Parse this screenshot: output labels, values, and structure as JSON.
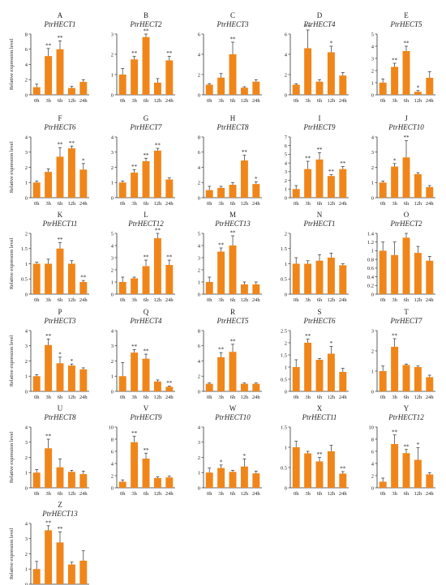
{
  "figure": {
    "colors": {
      "bar": "#F0861A",
      "axis": "#333333",
      "text": "#222222"
    }
  },
  "chart_data": [
    {
      "type": "bar",
      "letter": "A",
      "title": "PtrHECT1",
      "ylabel": "Relative expression level",
      "ylim": [
        0,
        8
      ],
      "yticks": [
        0,
        2,
        4,
        6,
        8
      ],
      "categories": [
        "0h",
        "3h",
        "6h",
        "12h",
        "24h"
      ],
      "values": [
        1.0,
        5.1,
        6.0,
        0.9,
        1.7
      ],
      "errors": [
        0.4,
        1.0,
        1.1,
        0.2,
        0.3
      ],
      "sig": [
        "",
        "**",
        "**",
        "",
        ""
      ]
    },
    {
      "type": "bar",
      "letter": "B",
      "title": "PtrHECT2",
      "ylabel": "",
      "ylim": [
        0,
        3
      ],
      "yticks": [
        0,
        1,
        2,
        3
      ],
      "categories": [
        "0h",
        "3h",
        "6h",
        "12h",
        "24h"
      ],
      "values": [
        1.0,
        1.75,
        2.85,
        0.6,
        1.7
      ],
      "errors": [
        0.3,
        0.15,
        0.15,
        0.2,
        0.2
      ],
      "sig": [
        "",
        "**",
        "**",
        "",
        "**"
      ]
    },
    {
      "type": "bar",
      "letter": "C",
      "title": "PtrHECT3",
      "ylabel": "",
      "ylim": [
        0,
        6
      ],
      "yticks": [
        0,
        2,
        4,
        6
      ],
      "categories": [
        "0h",
        "3h",
        "6h",
        "12h",
        "24h"
      ],
      "values": [
        1.0,
        1.7,
        4.0,
        0.7,
        1.3
      ],
      "errors": [
        0.1,
        0.4,
        1.2,
        0.1,
        0.2
      ],
      "sig": [
        "",
        "",
        "**",
        "",
        ""
      ]
    },
    {
      "type": "bar",
      "letter": "D",
      "title": "PtrHECT4",
      "ylabel": "",
      "ylim": [
        0,
        6
      ],
      "yticks": [
        0,
        2,
        4,
        6
      ],
      "categories": [
        "0h",
        "3h",
        "6h",
        "12h",
        "24h"
      ],
      "values": [
        1.0,
        4.6,
        1.3,
        4.2,
        1.9
      ],
      "errors": [
        0.1,
        1.8,
        0.2,
        0.6,
        0.3
      ],
      "sig": [
        "",
        "**",
        "",
        "*",
        ""
      ]
    },
    {
      "type": "bar",
      "letter": "E",
      "title": "PtrHECT5",
      "ylabel": "",
      "ylim": [
        0,
        5
      ],
      "yticks": [
        0,
        1,
        2,
        3,
        4,
        5
      ],
      "categories": [
        "0h",
        "3h",
        "6h",
        "12h",
        "24h"
      ],
      "values": [
        1.0,
        2.3,
        3.6,
        0.25,
        1.4
      ],
      "errors": [
        0.3,
        0.3,
        0.4,
        0.1,
        0.5
      ],
      "sig": [
        "",
        "**",
        "**",
        "*",
        ""
      ]
    },
    {
      "type": "bar",
      "letter": "F",
      "title": "PtrHECT6",
      "ylabel": "Relative expression level",
      "ylim": [
        0,
        4
      ],
      "yticks": [
        0,
        1,
        2,
        3,
        4
      ],
      "categories": [
        "0h",
        "3h",
        "6h",
        "12h",
        "24h"
      ],
      "values": [
        1.0,
        1.7,
        2.7,
        3.25,
        1.85
      ],
      "errors": [
        0.1,
        0.2,
        0.6,
        0.15,
        0.4
      ],
      "sig": [
        "",
        "",
        "**",
        "**",
        "*"
      ]
    },
    {
      "type": "bar",
      "letter": "G",
      "title": "PtrHECT7",
      "ylabel": "",
      "ylim": [
        0,
        4
      ],
      "yticks": [
        0,
        1,
        2,
        3,
        4
      ],
      "categories": [
        "0h",
        "3h",
        "6h",
        "12h",
        "24h"
      ],
      "values": [
        1.0,
        1.65,
        2.4,
        3.1,
        1.2
      ],
      "errors": [
        0.1,
        0.2,
        0.2,
        0.15,
        0.1
      ],
      "sig": [
        "",
        "**",
        "**",
        "**",
        ""
      ]
    },
    {
      "type": "bar",
      "letter": "H",
      "title": "PtrHECT8",
      "ylabel": "",
      "ylim": [
        0,
        8
      ],
      "yticks": [
        0,
        2,
        4,
        6,
        8
      ],
      "categories": [
        "0h",
        "3h",
        "6h",
        "12h",
        "24h"
      ],
      "values": [
        1.0,
        1.3,
        1.7,
        4.9,
        1.8
      ],
      "errors": [
        0.5,
        0.2,
        0.3,
        0.7,
        0.3
      ],
      "sig": [
        "",
        "",
        "",
        "**",
        "*"
      ]
    },
    {
      "type": "bar",
      "letter": "I",
      "title": "PtrHECT9",
      "ylabel": "",
      "ylim": [
        0,
        7
      ],
      "yticks": [
        0,
        1,
        2,
        3,
        4,
        5,
        6,
        7
      ],
      "categories": [
        "0h",
        "3h",
        "6h",
        "12h",
        "24h"
      ],
      "values": [
        1.0,
        3.3,
        4.4,
        2.5,
        3.3
      ],
      "errors": [
        0.4,
        0.9,
        0.8,
        0.15,
        0.3
      ],
      "sig": [
        "",
        "**",
        "**",
        "**",
        "**"
      ]
    },
    {
      "type": "bar",
      "letter": "J",
      "title": "PtrHECT10",
      "ylabel": "",
      "ylim": [
        0,
        4
      ],
      "yticks": [
        0,
        1,
        2,
        3,
        4
      ],
      "categories": [
        "0h",
        "3h",
        "6h",
        "12h",
        "24h"
      ],
      "values": [
        1.0,
        2.05,
        2.65,
        1.55,
        0.7
      ],
      "errors": [
        0.1,
        0.2,
        1.1,
        0.1,
        0.1
      ],
      "sig": [
        "",
        "*",
        "**",
        "",
        ""
      ]
    },
    {
      "type": "bar",
      "letter": "K",
      "title": "PtrHECT11",
      "ylabel": "Relative expression level",
      "ylim": [
        0,
        2
      ],
      "yticks": [
        0,
        0.5,
        1,
        1.5,
        2
      ],
      "categories": [
        "0h",
        "3h",
        "6h",
        "12h",
        "24h"
      ],
      "values": [
        1.0,
        1.0,
        1.5,
        1.0,
        0.4
      ],
      "errors": [
        0.05,
        0.15,
        0.2,
        0.1,
        0.05
      ],
      "sig": [
        "",
        "",
        "**",
        "",
        "**"
      ]
    },
    {
      "type": "bar",
      "letter": "L",
      "title": "PtrHECT12",
      "ylabel": "",
      "ylim": [
        0,
        5
      ],
      "yticks": [
        0,
        1,
        2,
        3,
        4,
        5
      ],
      "categories": [
        "0h",
        "3h",
        "6h",
        "12h",
        "24h"
      ],
      "values": [
        1.0,
        1.3,
        2.3,
        4.6,
        2.4
      ],
      "errors": [
        0.4,
        0.1,
        0.5,
        0.4,
        0.4
      ],
      "sig": [
        "",
        "",
        "**",
        "**",
        "**"
      ]
    },
    {
      "type": "bar",
      "letter": "M",
      "title": "PtrHECT13",
      "ylabel": "",
      "ylim": [
        0,
        5
      ],
      "yticks": [
        0,
        1,
        2,
        3,
        4,
        5
      ],
      "categories": [
        "0h",
        "3h",
        "6h",
        "12h",
        "24h"
      ],
      "values": [
        1.0,
        3.5,
        4.0,
        0.8,
        0.8
      ],
      "errors": [
        0.4,
        0.3,
        0.8,
        0.2,
        0.2
      ],
      "sig": [
        "",
        "**",
        "**",
        "",
        ""
      ]
    },
    {
      "type": "bar",
      "letter": "N",
      "title": "PtrHECT1",
      "ylabel": "",
      "ylim": [
        0,
        2
      ],
      "yticks": [
        0,
        0.5,
        1,
        1.5,
        2
      ],
      "categories": [
        "0h",
        "3h",
        "6h",
        "12h",
        "24h"
      ],
      "values": [
        1.0,
        1.0,
        1.1,
        1.2,
        0.95
      ],
      "errors": [
        0.2,
        0.1,
        0.2,
        0.15,
        0.05
      ],
      "sig": [
        "",
        "",
        "",
        "",
        ""
      ]
    },
    {
      "type": "bar",
      "letter": "O",
      "title": "PtrHECT2",
      "ylabel": "",
      "ylim": [
        0,
        1.4
      ],
      "yticks": [
        0,
        0.2,
        0.4,
        0.6,
        0.8,
        1,
        1.2,
        1.4
      ],
      "categories": [
        "0h",
        "3h",
        "6h",
        "12h",
        "24h"
      ],
      "values": [
        1.0,
        0.9,
        1.3,
        0.95,
        0.77
      ],
      "errors": [
        0.2,
        0.3,
        0.1,
        0.15,
        0.1
      ],
      "sig": [
        "",
        "",
        "",
        "",
        ""
      ]
    },
    {
      "type": "bar",
      "letter": "P",
      "title": "PtrHECT3",
      "ylabel": "Relative expression level",
      "ylim": [
        0,
        4
      ],
      "yticks": [
        0,
        1,
        2,
        3,
        4
      ],
      "categories": [
        "0h",
        "3h",
        "6h",
        "12h",
        "24h"
      ],
      "values": [
        1.0,
        3.05,
        1.85,
        1.7,
        1.45
      ],
      "errors": [
        0.1,
        0.4,
        0.4,
        0.1,
        0.1
      ],
      "sig": [
        "",
        "**",
        "*",
        "*",
        ""
      ]
    },
    {
      "type": "bar",
      "letter": "Q",
      "title": "PtrHECT4",
      "ylabel": "",
      "ylim": [
        0,
        4
      ],
      "yticks": [
        0,
        1,
        2,
        3,
        4
      ],
      "categories": [
        "0h",
        "3h",
        "6h",
        "12h",
        "24h"
      ],
      "values": [
        1.0,
        2.55,
        2.15,
        0.65,
        0.3
      ],
      "errors": [
        0.9,
        0.2,
        0.3,
        0.1,
        0.05
      ],
      "sig": [
        "",
        "**",
        "**",
        "",
        "**"
      ]
    },
    {
      "type": "bar",
      "letter": "R",
      "title": "PtrHECT5",
      "ylabel": "",
      "ylim": [
        0,
        8
      ],
      "yticks": [
        0,
        2,
        4,
        6,
        8
      ],
      "categories": [
        "0h",
        "3h",
        "6h",
        "12h",
        "24h"
      ],
      "values": [
        1.0,
        4.5,
        5.2,
        1.0,
        1.0
      ],
      "errors": [
        0.1,
        0.6,
        1.0,
        0.1,
        0.1
      ],
      "sig": [
        "",
        "**",
        "**",
        "",
        ""
      ]
    },
    {
      "type": "bar",
      "letter": "S",
      "title": "PtrHECT6",
      "ylabel": "",
      "ylim": [
        0,
        2.5
      ],
      "yticks": [
        0,
        0.5,
        1,
        1.5,
        2,
        2.5
      ],
      "categories": [
        "0h",
        "3h",
        "6h",
        "12h",
        "24h"
      ],
      "values": [
        1.0,
        2.0,
        1.3,
        1.55,
        0.8
      ],
      "errors": [
        0.3,
        0.15,
        0.05,
        0.3,
        0.15
      ],
      "sig": [
        "",
        "**",
        "",
        "*",
        ""
      ]
    },
    {
      "type": "bar",
      "letter": "T",
      "title": "PtrHECT7",
      "ylabel": "",
      "ylim": [
        0,
        3
      ],
      "yticks": [
        0,
        1,
        2,
        3
      ],
      "categories": [
        "0h",
        "3h",
        "6h",
        "12h",
        "24h"
      ],
      "values": [
        1.0,
        2.2,
        1.3,
        1.2,
        0.7
      ],
      "errors": [
        0.25,
        0.4,
        0.05,
        0.05,
        0.1
      ],
      "sig": [
        "",
        "**",
        "",
        "",
        ""
      ]
    },
    {
      "type": "bar",
      "letter": "U",
      "title": "PtrHECT8",
      "ylabel": "Relative expression level",
      "ylim": [
        0,
        4
      ],
      "yticks": [
        0,
        1,
        2,
        3,
        4
      ],
      "categories": [
        "0h",
        "3h",
        "6h",
        "12h",
        "24h"
      ],
      "values": [
        1.0,
        2.6,
        1.35,
        1.05,
        0.9
      ],
      "errors": [
        0.2,
        0.6,
        0.55,
        0.1,
        0.2
      ],
      "sig": [
        "",
        "**",
        "",
        "",
        ""
      ]
    },
    {
      "type": "bar",
      "letter": "V",
      "title": "PtrHECT9",
      "ylabel": "",
      "ylim": [
        0,
        10
      ],
      "yticks": [
        0,
        2,
        4,
        6,
        8,
        10
      ],
      "categories": [
        "0h",
        "3h",
        "6h",
        "12h",
        "24h"
      ],
      "values": [
        1.0,
        7.5,
        4.8,
        1.6,
        1.7
      ],
      "errors": [
        0.3,
        1.0,
        0.9,
        0.2,
        0.2
      ],
      "sig": [
        "",
        "**",
        "**",
        "",
        ""
      ]
    },
    {
      "type": "bar",
      "letter": "W",
      "title": "PtrHECT10",
      "ylabel": "",
      "ylim": [
        0,
        4
      ],
      "yticks": [
        0,
        1,
        2,
        3,
        4
      ],
      "categories": [
        "0h",
        "3h",
        "6h",
        "12h",
        "24h"
      ],
      "values": [
        1.0,
        1.3,
        1.05,
        1.4,
        0.95
      ],
      "errors": [
        0.3,
        0.2,
        0.1,
        0.5,
        0.15
      ],
      "sig": [
        "",
        "*",
        "",
        "*",
        ""
      ]
    },
    {
      "type": "bar",
      "letter": "X",
      "title": "PtrHECT11",
      "ylabel": "",
      "ylim": [
        0,
        1.5
      ],
      "yticks": [
        0,
        0.5,
        1,
        1.5
      ],
      "categories": [
        "0h",
        "3h",
        "6h",
        "12h",
        "24h"
      ],
      "values": [
        1.0,
        0.85,
        0.65,
        0.9,
        0.35
      ],
      "errors": [
        0.15,
        0.05,
        0.1,
        0.15,
        0.05
      ],
      "sig": [
        "",
        "",
        "**",
        "",
        "**"
      ]
    },
    {
      "type": "bar",
      "letter": "Y",
      "title": "PtrHECT12",
      "ylabel": "",
      "ylim": [
        0,
        10
      ],
      "yticks": [
        0,
        2,
        4,
        6,
        8,
        10
      ],
      "categories": [
        "0h",
        "3h",
        "6h",
        "12h",
        "24h"
      ],
      "values": [
        1.0,
        7.2,
        5.7,
        4.6,
        2.2
      ],
      "errors": [
        0.6,
        1.5,
        0.6,
        2.0,
        0.3
      ],
      "sig": [
        "",
        "**",
        "**",
        "*",
        ""
      ]
    },
    {
      "type": "bar",
      "letter": "Z",
      "title": "PtrHECT13",
      "ylabel": "Relative expression level",
      "ylim": [
        0,
        4
      ],
      "yticks": [
        0,
        1,
        2,
        3,
        4
      ],
      "categories": [
        "0h",
        "3h",
        "6h",
        "12h",
        "24h"
      ],
      "values": [
        1.0,
        3.55,
        2.75,
        1.3,
        1.55
      ],
      "errors": [
        0.5,
        0.3,
        0.7,
        0.15,
        0.65
      ],
      "sig": [
        "",
        "**",
        "**",
        "",
        ""
      ]
    }
  ]
}
